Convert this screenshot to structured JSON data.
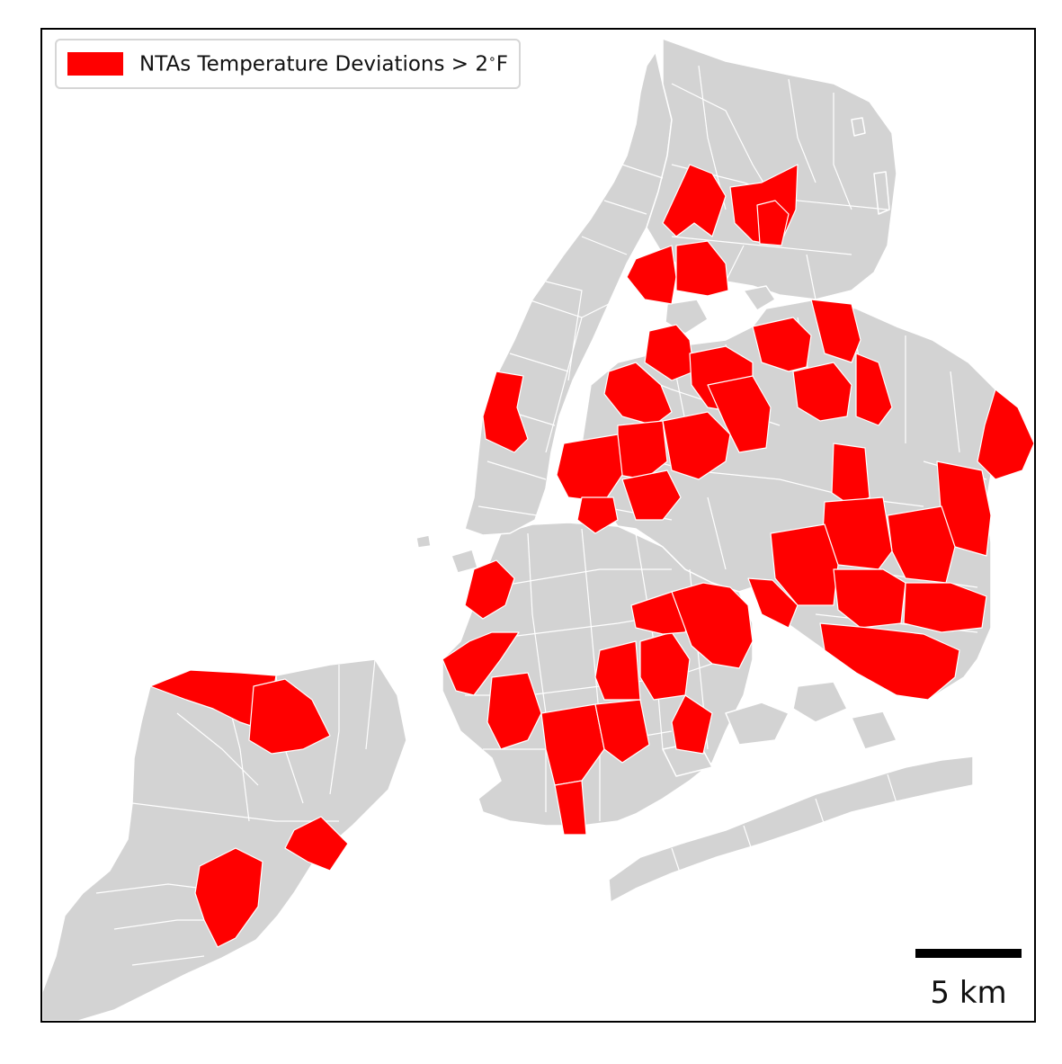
{
  "map": {
    "background_color": "#ffffff",
    "neighborhood_fill": "#d3d3d3",
    "border_color": "#ffffff",
    "highlight_fill": "#ff0000"
  },
  "legend": {
    "label_prefix": "NTAs Temperature Deviations > 2",
    "degree_symbol": "∘",
    "label_unit": "F",
    "swatch_color": "#ff0000",
    "placement": "top-left"
  },
  "scale_bar": {
    "label": "5 km",
    "distance_km": 5,
    "placement": "bottom-right"
  }
}
